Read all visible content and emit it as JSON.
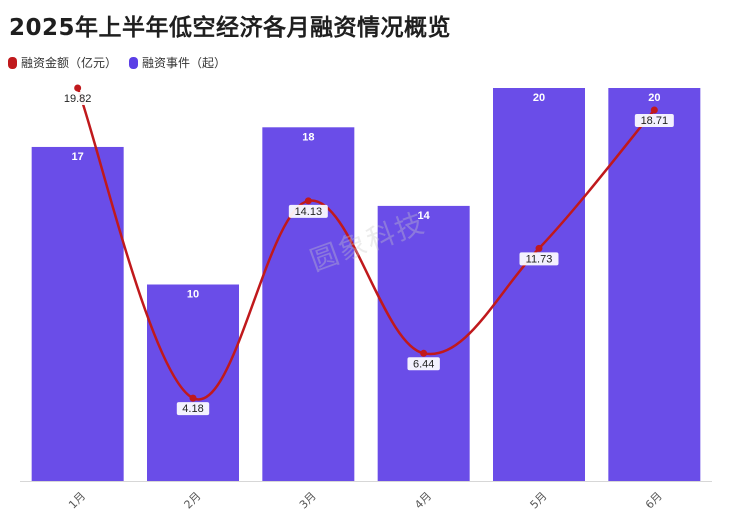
{
  "chart_data": {
    "type": "bar",
    "title": "2025年上半年低空经济各月融资情况概览",
    "categories": [
      "1月",
      "2月",
      "3月",
      "4月",
      "5月",
      "6月"
    ],
    "series": [
      {
        "name": "融资事件（起）",
        "type": "bar",
        "color": "#6a4de8",
        "values": [
          17,
          10,
          18,
          14,
          20,
          20
        ]
      },
      {
        "name": "融资金额（亿元）",
        "type": "line",
        "color": "#c0191c",
        "values": [
          19.82,
          4.18,
          14.13,
          6.44,
          11.73,
          18.71
        ]
      }
    ],
    "bar_ylim": [
      0,
      20
    ],
    "line_ylim": [
      0,
      19.82
    ],
    "legend_position": "top-left",
    "grid": false
  },
  "legend": [
    {
      "label": "融资金额（亿元）",
      "color": "#c0191c"
    },
    {
      "label": "融资事件（起）",
      "color": "#5b3fe6"
    }
  ],
  "watermark": "圆象科技"
}
